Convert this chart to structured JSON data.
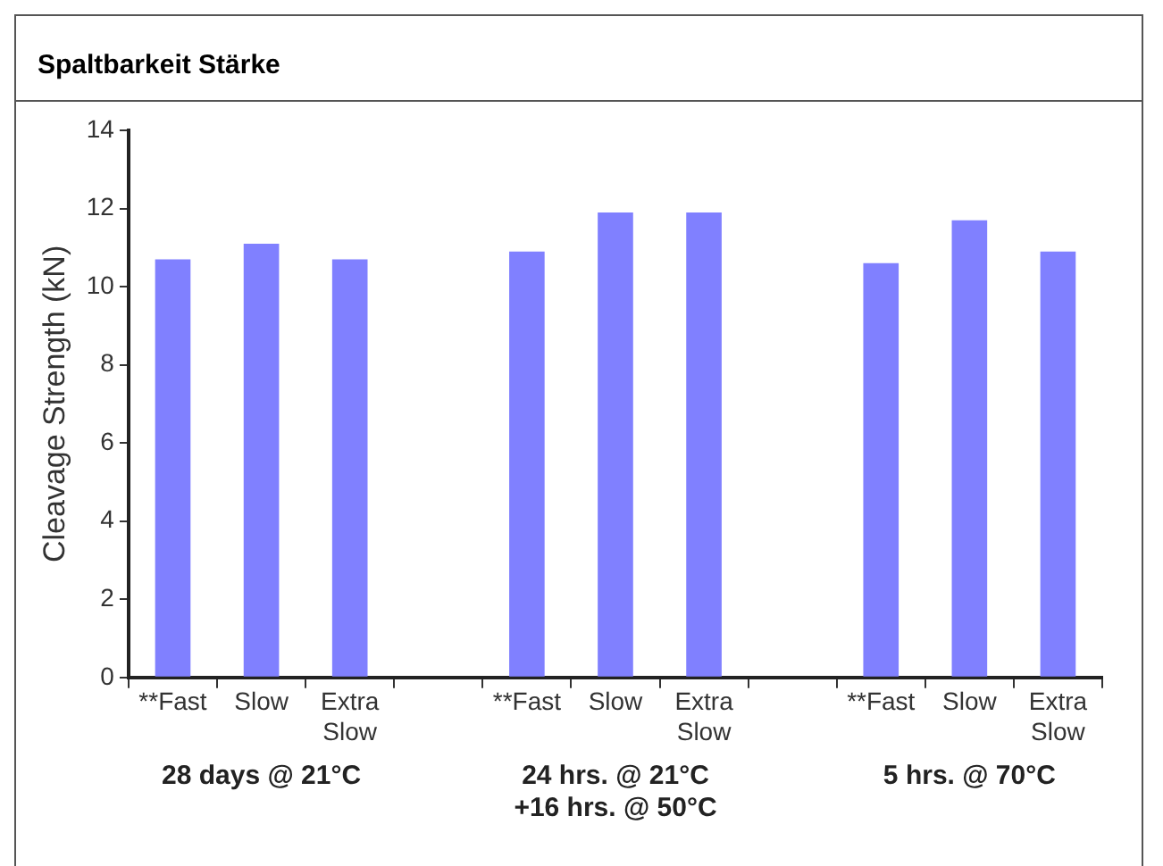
{
  "chart_data": {
    "type": "bar",
    "title": "Spaltbarkeit Stärke",
    "ylabel": "Cleavage Strength (kN)",
    "categories": [
      "**Fast",
      "Slow",
      "Extra Slow",
      null,
      "**Fast",
      "Slow",
      "Extra Slow",
      null,
      "**Fast",
      "Slow",
      "Extra Slow"
    ],
    "values": [
      10.7,
      11.1,
      10.7,
      null,
      10.9,
      11.9,
      11.9,
      null,
      10.6,
      11.7,
      10.9
    ],
    "color": "#8080ff",
    "ylim": [
      0,
      14
    ],
    "yticks": [
      0,
      2,
      4,
      6,
      8,
      10,
      12,
      14
    ],
    "annotations": [
      "28 days @ 21°C",
      "24 hrs. @ 21°C +16 hrs. @ 50°C",
      "5 hrs. @ 70°C"
    ]
  }
}
